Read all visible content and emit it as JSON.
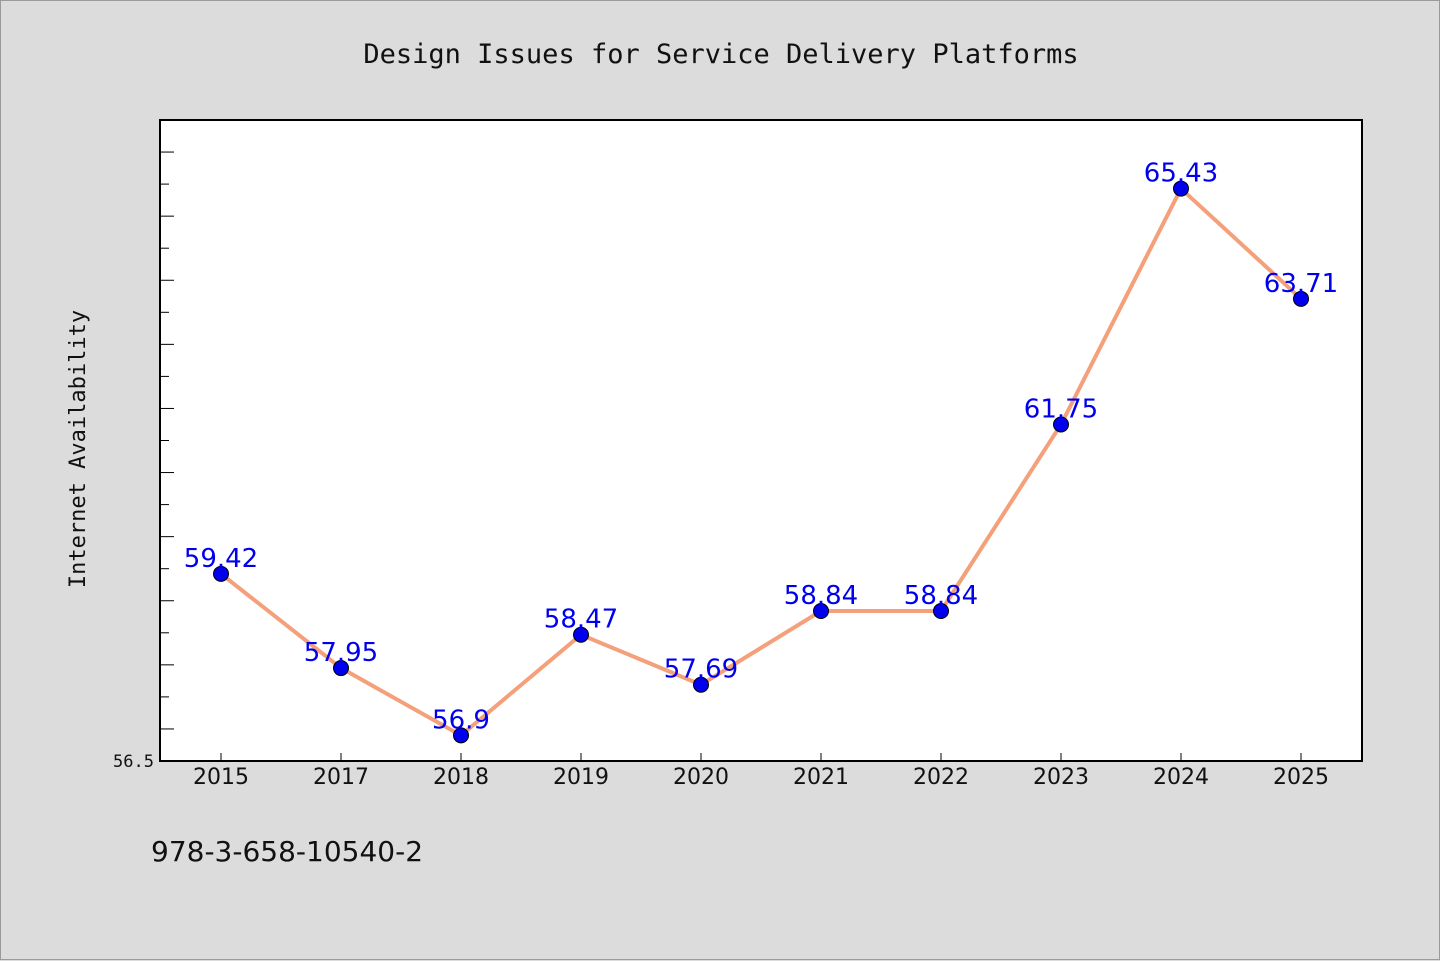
{
  "chart_data": {
    "type": "line",
    "title": "Design Issues for Service Delivery Platforms",
    "xlabel": "",
    "ylabel": "Internet Availability",
    "categories": [
      "2015",
      "2017",
      "2018",
      "2019",
      "2020",
      "2021",
      "2022",
      "2023",
      "2024",
      "2025"
    ],
    "series": [
      {
        "values": [
          59.42,
          57.95,
          56.9,
          58.47,
          57.69,
          58.84,
          58.84,
          61.75,
          65.43,
          63.71
        ],
        "data_labels": [
          "59.42",
          "57.95",
          "56.9",
          "58.47",
          "57.69",
          "58.84",
          "58.84",
          "61.75",
          "65.43",
          "63.71"
        ],
        "line_color": "#f4a07a",
        "marker_color": "#0000ee",
        "label_color": "#0000ee"
      }
    ],
    "y_tick_labels": [
      "56.5"
    ],
    "ylim": [
      56.5,
      66.5
    ],
    "grid": false,
    "legend": "none"
  },
  "footer": {
    "code": "978-3-658-10540-2"
  },
  "colors": {
    "background": "#dcdcdc",
    "plot_background": "#ffffff"
  }
}
